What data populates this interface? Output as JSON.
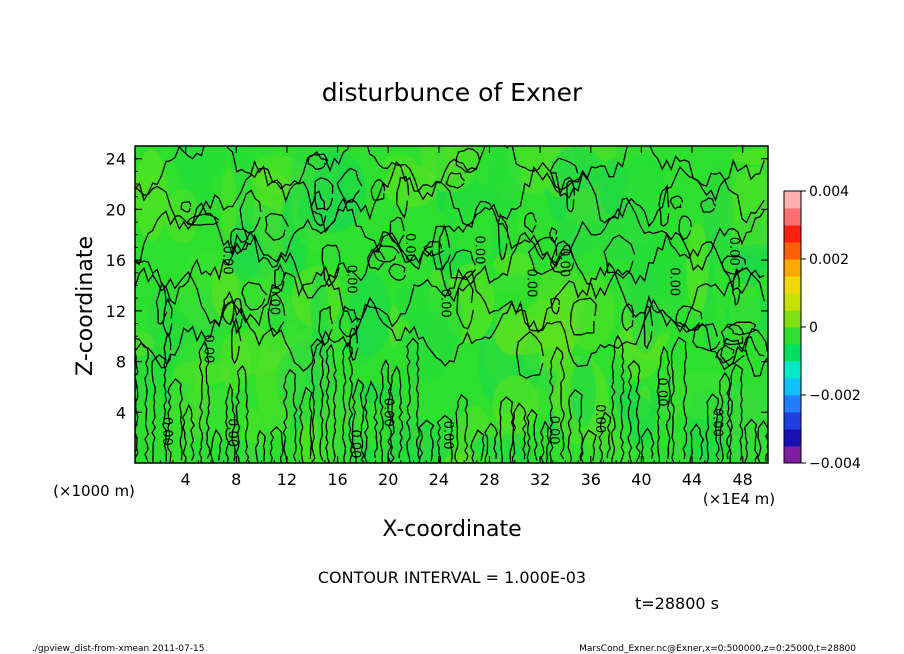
{
  "chart_data": {
    "type": "heatmap",
    "title": "disturbunce of Exner",
    "xlabel": "X-coordinate",
    "ylabel": "Z-coordinate",
    "x_unit_left": "(×1000 m)",
    "x_unit_right": "(×1E4 m)",
    "xlim": [
      0,
      50
    ],
    "ylim": [
      0,
      25
    ],
    "x_ticks": [
      4,
      8,
      12,
      16,
      20,
      24,
      28,
      32,
      36,
      40,
      44,
      48
    ],
    "y_ticks": [
      4,
      8,
      12,
      16,
      20,
      24
    ],
    "colorbar": {
      "min": -0.004,
      "max": 0.004,
      "tick_values": [
        0.004,
        0.002,
        0,
        -0.002,
        -0.004
      ],
      "tick_labels": [
        "0.004",
        "0.002",
        "0",
        "−0.002",
        "−0.004"
      ],
      "colors": [
        "#7f1f9f",
        "#1a0fb0",
        "#1f3fe0",
        "#1f7fff",
        "#10c0ff",
        "#00e8c8",
        "#00e060",
        "#2ee02e",
        "#7fe012",
        "#c8e000",
        "#f0d800",
        "#ffa800",
        "#ff6000",
        "#ff2010",
        "#ff7070",
        "#ffb0b0"
      ]
    },
    "field_value_range": [
      -0.0003,
      0.0003
    ],
    "contour_labels": [
      "0.00"
    ],
    "contour_interval_text": "CONTOUR INTERVAL = 1.000E-03",
    "time_text": "t=28800 s",
    "grid": false
  },
  "footer": {
    "left": "./gpview_dist-from-xmean  2011-07-15",
    "right": "MarsCond_Exner.nc@Exner,x=0:500000,z=0:25000,t=28800"
  }
}
